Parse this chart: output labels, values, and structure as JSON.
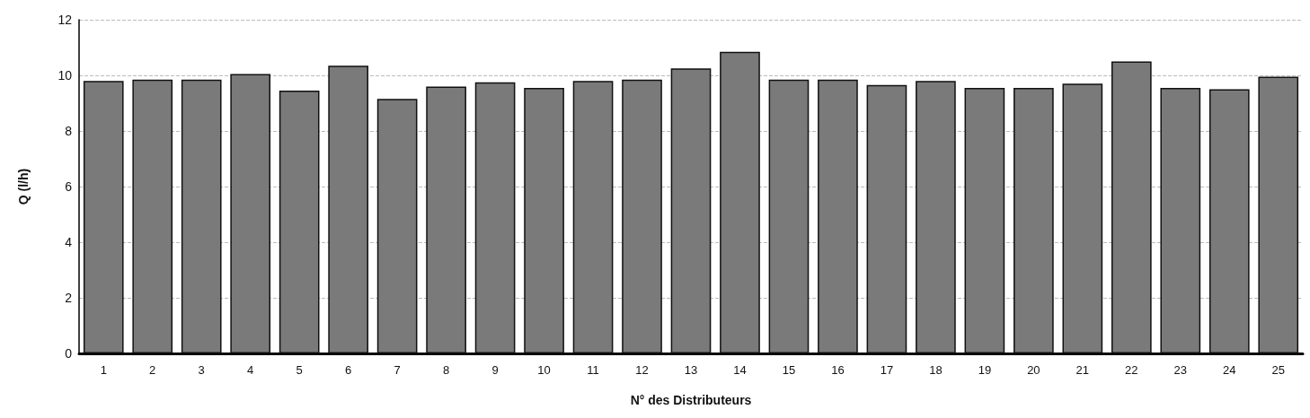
{
  "chart_data": {
    "type": "bar",
    "xlabel": "N° des Distributeurs",
    "ylabel": "Q (l/h)",
    "categories": [
      "1",
      "2",
      "3",
      "4",
      "5",
      "6",
      "7",
      "8",
      "9",
      "10",
      "11",
      "12",
      "13",
      "14",
      "15",
      "16",
      "17",
      "18",
      "19",
      "20",
      "21",
      "22",
      "23",
      "24",
      "25"
    ],
    "values": [
      9.8,
      9.85,
      9.85,
      10.05,
      9.45,
      10.35,
      9.15,
      9.6,
      9.75,
      9.55,
      9.8,
      9.85,
      10.25,
      10.85,
      9.85,
      9.85,
      9.65,
      9.8,
      9.55,
      9.55,
      9.7,
      10.5,
      9.55,
      9.5,
      9.95
    ],
    "color": "#7a7a7a",
    "ylim": [
      0,
      12
    ],
    "yticks": [
      0,
      2,
      4,
      6,
      8,
      10,
      12
    ],
    "grid": "y"
  }
}
